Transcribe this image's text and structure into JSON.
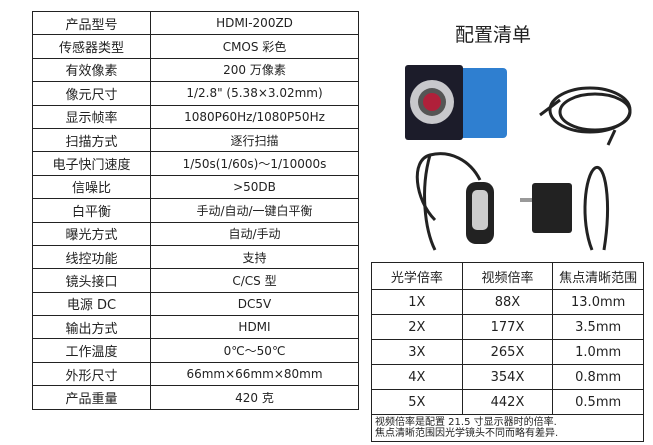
{
  "spec_table": [
    {
      "label": "产品型号",
      "value": "HDMI-200ZD"
    },
    {
      "label": "传感器类型",
      "value": "CMOS 彩色"
    },
    {
      "label": "有效像素",
      "value": "200 万像素"
    },
    {
      "label": "像元尺寸",
      "value": "1/2.8\" (5.38×3.02mm)"
    },
    {
      "label": "显示帧率",
      "value": "1080P60Hz/1080P50Hz"
    },
    {
      "label": "扫描方式",
      "value": "逐行扫描"
    },
    {
      "label": "电子快门速度",
      "value": "1/50s(1/60s)～1/10000s"
    },
    {
      "label": "信噪比",
      "value": ">50DB"
    },
    {
      "label": "白平衡",
      "value": "手动/自动/一键白平衡"
    },
    {
      "label": "曝光方式",
      "value": "自动/手动"
    },
    {
      "label": "线控功能",
      "value": "支持"
    },
    {
      "label": "镜头接口",
      "value": "C/CS 型"
    },
    {
      "label": "电源 DC",
      "value": "DC5V"
    },
    {
      "label": "输出方式",
      "value": "HDMI"
    },
    {
      "label": "工作温度",
      "value": "0℃～50℃"
    },
    {
      "label": "外形尺寸",
      "value": "66mm×66mm×80mm"
    },
    {
      "label": "产品重量",
      "value": "420 克"
    }
  ],
  "config": {
    "title": "配置清单"
  },
  "magnification": {
    "headers": [
      "光学倍率",
      "视频倍率",
      "焦点清晰范围"
    ],
    "rows": [
      [
        "1X",
        "88X",
        "13.0mm"
      ],
      [
        "2X",
        "177X",
        "3.5mm"
      ],
      [
        "3X",
        "265X",
        "1.0mm"
      ],
      [
        "4X",
        "354X",
        "0.8mm"
      ],
      [
        "5X",
        "442X",
        "0.5mm"
      ]
    ],
    "note_lines": [
      "视频倍率是配置 21.5 寸显示器时的倍率.",
      "焦点清晰范围因光学镜头不同而略有差异."
    ]
  },
  "colors": {
    "camera_body": "#2f7fd0"
  }
}
